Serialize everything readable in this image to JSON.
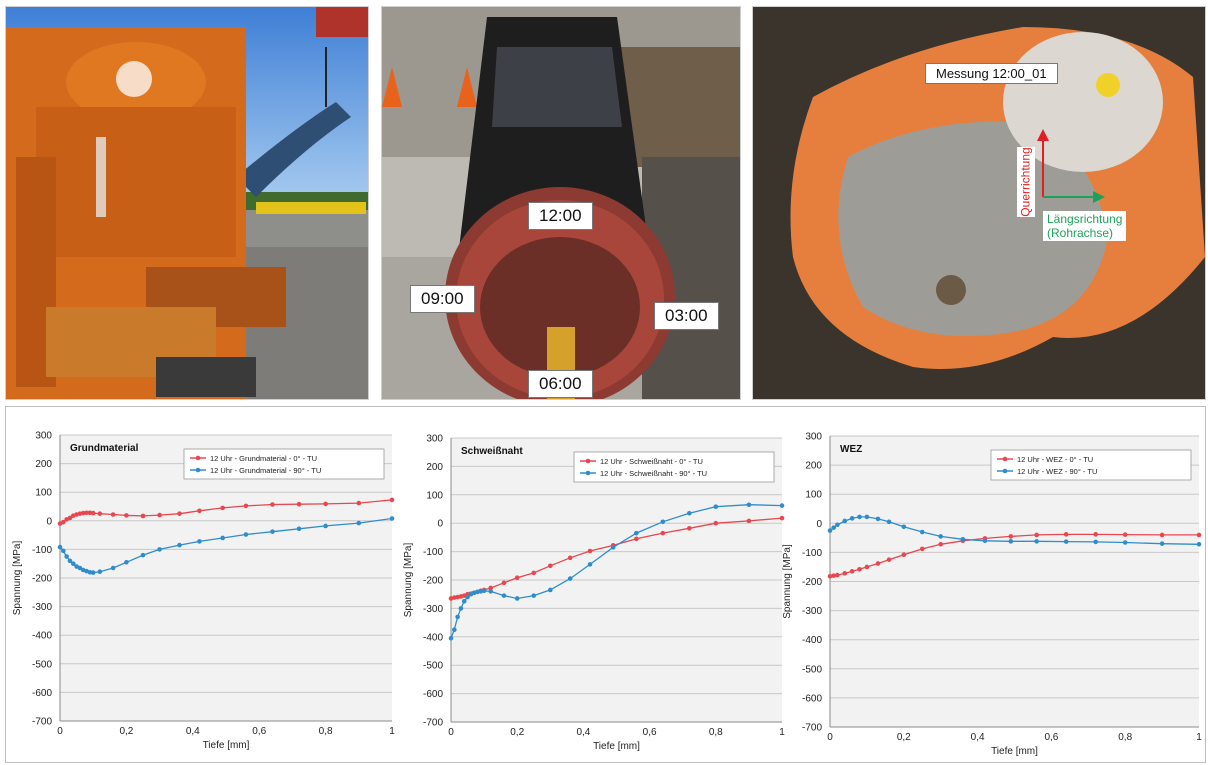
{
  "photos": {
    "pipe_labels": {
      "top": "12:00",
      "left": "09:00",
      "right": "03:00",
      "bottom": "06:00"
    },
    "measurement": {
      "label": "Messung 12:00_01",
      "transverse": "Querrichtung",
      "longitudinal": "Längsrichtung",
      "longitudinal_sub": "(Rohrachse)"
    },
    "colors": {
      "transverse_arrow": "#e02020",
      "longitudinal_arrow": "#1fa05a"
    }
  },
  "chart_data": [
    {
      "type": "line",
      "title": "Grundmaterial",
      "xlabel": "Tiefe [mm]",
      "ylabel": "Spannung [MPa]",
      "xlim": [
        0,
        1
      ],
      "ylim": [
        -700,
        300
      ],
      "xticks": [
        "0",
        "0,2",
        "0,4",
        "0,6",
        "0,8",
        "1"
      ],
      "yticks": [
        "300",
        "200",
        "100",
        "0",
        "-100",
        "-200",
        "-300",
        "-400",
        "-500",
        "-600",
        "-700"
      ],
      "grid": true,
      "legend_position": "top-right",
      "series": [
        {
          "name": "12 Uhr - Grundmaterial - 0° - TU",
          "color": "#e8474f",
          "x": [
            0,
            0.01,
            0.02,
            0.03,
            0.04,
            0.05,
            0.06,
            0.07,
            0.08,
            0.09,
            0.1,
            0.12,
            0.16,
            0.2,
            0.25,
            0.3,
            0.36,
            0.42,
            0.49,
            0.56,
            0.64,
            0.72,
            0.8,
            0.9,
            1.0
          ],
          "y": [
            -10,
            -5,
            5,
            10,
            18,
            22,
            25,
            27,
            28,
            28,
            27,
            25,
            22,
            19,
            17,
            20,
            25,
            35,
            45,
            52,
            57,
            58,
            59,
            62,
            73
          ]
        },
        {
          "name": "12 Uhr - Grundmaterial - 90° - TU",
          "color": "#2f8dcd",
          "x": [
            0,
            0.01,
            0.02,
            0.03,
            0.04,
            0.05,
            0.06,
            0.07,
            0.08,
            0.09,
            0.1,
            0.12,
            0.16,
            0.2,
            0.25,
            0.3,
            0.36,
            0.42,
            0.49,
            0.56,
            0.64,
            0.72,
            0.8,
            0.9,
            1.0
          ],
          "y": [
            -92,
            -105,
            -125,
            -140,
            -150,
            -160,
            -165,
            -172,
            -176,
            -180,
            -181,
            -178,
            -165,
            -145,
            -120,
            -100,
            -85,
            -72,
            -60,
            -48,
            -38,
            -28,
            -18,
            -8,
            8
          ]
        }
      ]
    },
    {
      "type": "line",
      "title": "Schweißnaht",
      "xlabel": "Tiefe [mm]",
      "ylabel": "Spannung [MPa]",
      "xlim": [
        0,
        1
      ],
      "ylim": [
        -700,
        300
      ],
      "xticks": [
        "0",
        "0,2",
        "0,4",
        "0,6",
        "0,8",
        "1"
      ],
      "yticks": [
        "300",
        "200",
        "100",
        "0",
        "-100",
        "-200",
        "-300",
        "-400",
        "-500",
        "-600",
        "-700"
      ],
      "grid": true,
      "legend_position": "top-right",
      "series": [
        {
          "name": "12 Uhr - Schweißnaht - 0° - TU",
          "color": "#e8474f",
          "x": [
            0,
            0.01,
            0.02,
            0.03,
            0.04,
            0.05,
            0.06,
            0.07,
            0.08,
            0.09,
            0.1,
            0.12,
            0.16,
            0.2,
            0.25,
            0.3,
            0.36,
            0.42,
            0.49,
            0.56,
            0.64,
            0.72,
            0.8,
            0.9,
            1.0
          ],
          "y": [
            -265,
            -262,
            -260,
            -258,
            -255,
            -250,
            -248,
            -245,
            -242,
            -238,
            -235,
            -228,
            -210,
            -192,
            -175,
            -150,
            -122,
            -98,
            -78,
            -55,
            -35,
            -18,
            0,
            8,
            18
          ]
        },
        {
          "name": "12 Uhr - Schweißnaht - 90° - TU",
          "color": "#2f8dcd",
          "x": [
            0,
            0.01,
            0.02,
            0.03,
            0.04,
            0.05,
            0.06,
            0.07,
            0.08,
            0.09,
            0.1,
            0.12,
            0.16,
            0.2,
            0.25,
            0.3,
            0.36,
            0.42,
            0.49,
            0.56,
            0.64,
            0.72,
            0.8,
            0.9,
            1.0
          ],
          "y": [
            -405,
            -375,
            -330,
            -300,
            -275,
            -260,
            -250,
            -245,
            -242,
            -240,
            -238,
            -240,
            -255,
            -265,
            -255,
            -235,
            -195,
            -145,
            -85,
            -35,
            5,
            35,
            58,
            65,
            62
          ]
        }
      ]
    },
    {
      "type": "line",
      "title": "WEZ",
      "xlabel": "Tiefe [mm]",
      "ylabel": "Spannung [MPa]",
      "xlim": [
        0,
        1
      ],
      "ylim": [
        -700,
        300
      ],
      "xticks": [
        "0",
        "0,2",
        "0,4",
        "0,6",
        "0,8",
        "1"
      ],
      "yticks": [
        "300",
        "200",
        "100",
        "0",
        "-100",
        "-200",
        "-300",
        "-400",
        "-500",
        "-600",
        "-700"
      ],
      "grid": true,
      "legend_position": "top-right",
      "series": [
        {
          "name": "12 Uhr - WEZ - 0° - TU",
          "color": "#e8474f",
          "x": [
            0,
            0.01,
            0.02,
            0.04,
            0.06,
            0.08,
            0.1,
            0.13,
            0.16,
            0.2,
            0.25,
            0.3,
            0.36,
            0.42,
            0.49,
            0.56,
            0.64,
            0.72,
            0.8,
            0.9,
            1.0
          ],
          "y": [
            -182,
            -180,
            -178,
            -172,
            -165,
            -158,
            -150,
            -138,
            -125,
            -108,
            -88,
            -72,
            -60,
            -52,
            -45,
            -40,
            -38,
            -38,
            -39,
            -40,
            -40
          ]
        },
        {
          "name": "12 Uhr - WEZ - 90° - TU",
          "color": "#2f8dcd",
          "x": [
            0,
            0.01,
            0.02,
            0.04,
            0.06,
            0.08,
            0.1,
            0.13,
            0.16,
            0.2,
            0.25,
            0.3,
            0.36,
            0.42,
            0.49,
            0.56,
            0.64,
            0.72,
            0.8,
            0.9,
            1.0
          ],
          "y": [
            -25,
            -15,
            -5,
            8,
            17,
            22,
            22,
            15,
            5,
            -12,
            -30,
            -45,
            -55,
            -60,
            -62,
            -62,
            -63,
            -64,
            -66,
            -70,
            -72
          ]
        }
      ]
    }
  ]
}
